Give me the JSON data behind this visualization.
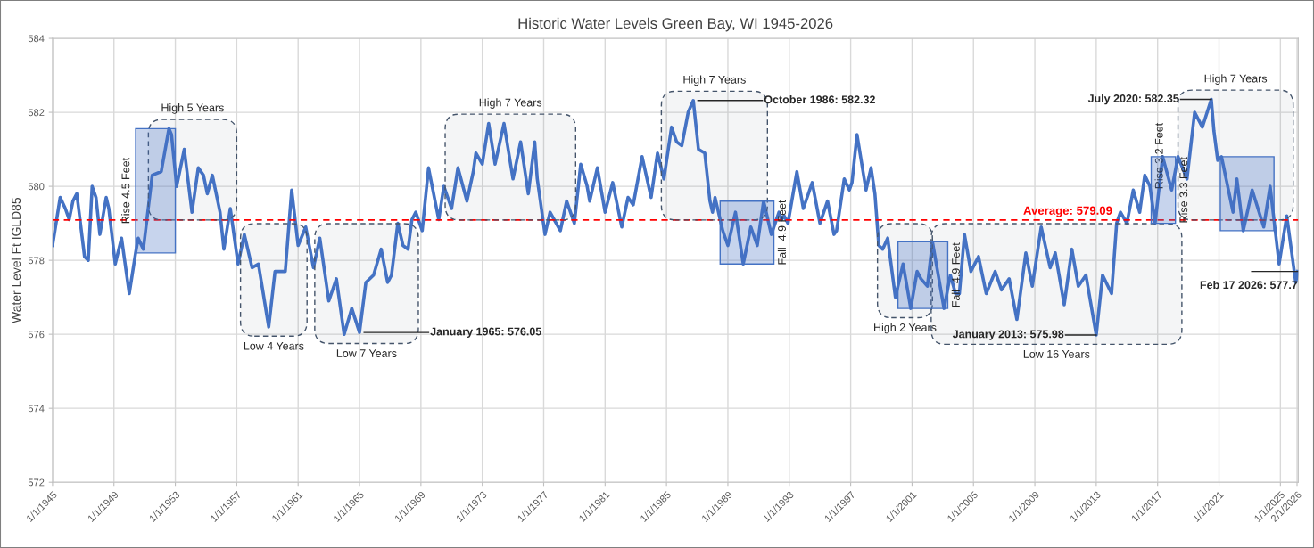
{
  "chart_data": {
    "type": "line",
    "title": "Historic Water Levels Green Bay, WI 1945-2026",
    "ylabel": "Water Level Ft IGLD85",
    "x": [
      "1945-01",
      "1945-07",
      "1945-11",
      "1946-02",
      "1946-05",
      "1946-08",
      "1947-02",
      "1947-05",
      "1947-08",
      "1947-11",
      "1948-02",
      "1948-07",
      "1948-09",
      "1949-02",
      "1949-07",
      "1950-01",
      "1950-06",
      "1950-08",
      "1950-12",
      "1951-07",
      "1952-02",
      "1952-08",
      "1952-10",
      "1953-02",
      "1953-08",
      "1954-02",
      "1954-07",
      "1954-11",
      "1955-02",
      "1955-06",
      "1955-12",
      "1956-03",
      "1956-08",
      "1957-02",
      "1957-07",
      "1958-01",
      "1958-06",
      "1959-02",
      "1959-07",
      "1960-03",
      "1960-08",
      "1961-01",
      "1961-07",
      "1962-01",
      "1962-06",
      "1963-01",
      "1963-07",
      "1964-01",
      "1964-07",
      "1965-01",
      "1965-06",
      "1965-12",
      "1966-06",
      "1966-11",
      "1967-02",
      "1967-07",
      "1967-11",
      "1968-03",
      "1968-06",
      "1968-09",
      "1969-02",
      "1969-07",
      "1970-03",
      "1970-07",
      "1971-01",
      "1971-06",
      "1972-01",
      "1972-06",
      "1972-08",
      "1973-01",
      "1973-06",
      "1973-11",
      "1974-06",
      "1975-01",
      "1975-07",
      "1976-01",
      "1976-06",
      "1976-08",
      "1977-02",
      "1977-06",
      "1978-02",
      "1978-07",
      "1979-01",
      "1979-06",
      "1979-11",
      "1980-01",
      "1980-07",
      "1981-01",
      "1981-07",
      "1982-02",
      "1982-07",
      "1982-11",
      "1983-06",
      "1984-01",
      "1984-06",
      "1984-11",
      "1985-05",
      "1985-09",
      "1986-01",
      "1986-06",
      "1986-10",
      "1987-02",
      "1987-07",
      "1987-11",
      "1988-01",
      "1988-03",
      "1988-09",
      "1989-01",
      "1989-07",
      "1990-01",
      "1990-07",
      "1990-12",
      "1991-05",
      "1991-11",
      "1992-05",
      "1992-07",
      "1992-09",
      "1992-12",
      "1993-07",
      "1993-12",
      "1994-07",
      "1995-01",
      "1995-07",
      "1995-12",
      "1996-02",
      "1996-08",
      "1996-12",
      "1997-02",
      "1997-06",
      "1998-01",
      "1998-05",
      "1998-08",
      "1998-11",
      "1999-02",
      "1999-06",
      "1999-12",
      "2000-06",
      "2000-12",
      "2001-05",
      "2001-08",
      "2002-01",
      "2002-05",
      "2002-08",
      "2003-02",
      "2003-07",
      "2003-11",
      "2004-02",
      "2004-06",
      "2004-11",
      "2005-05",
      "2005-11",
      "2006-06",
      "2006-11",
      "2007-05",
      "2007-11",
      "2008-06",
      "2008-11",
      "2009-06",
      "2010-01",
      "2010-05",
      "2010-12",
      "2011-06",
      "2011-11",
      "2012-05",
      "2013-01",
      "2013-06",
      "2014-01",
      "2014-05",
      "2014-08",
      "2015-01",
      "2015-06",
      "2015-11",
      "2016-03",
      "2016-07",
      "2016-11",
      "2017-05",
      "2017-12",
      "2018-05",
      "2018-12",
      "2019-06",
      "2019-12",
      "2020-07",
      "2020-09",
      "2020-12",
      "2021-03",
      "2021-12",
      "2022-03",
      "2022-08",
      "2023-03",
      "2023-12",
      "2024-05",
      "2024-12",
      "2025-06",
      "2026-01",
      "2026-02-17"
    ],
    "series": [
      {
        "color": "#4472c4",
        "values": [
          578.4,
          579.7,
          579.4,
          579.1,
          579.6,
          579.8,
          578.1,
          578.0,
          580.0,
          579.7,
          578.7,
          579.7,
          579.4,
          577.9,
          578.6,
          577.1,
          578.2,
          578.6,
          578.3,
          580.3,
          580.4,
          581.56,
          581.4,
          580.0,
          581.0,
          579.3,
          580.5,
          580.3,
          579.8,
          580.3,
          579.3,
          578.3,
          579.4,
          577.9,
          578.7,
          577.8,
          577.9,
          576.2,
          577.7,
          577.7,
          579.9,
          578.4,
          578.9,
          577.8,
          578.6,
          576.9,
          577.5,
          576.0,
          576.7,
          576.05,
          577.4,
          577.6,
          578.3,
          577.4,
          577.6,
          579.0,
          578.4,
          578.3,
          579.1,
          579.3,
          578.8,
          580.5,
          579.1,
          580.0,
          579.4,
          580.5,
          579.6,
          580.4,
          580.9,
          580.6,
          581.7,
          580.6,
          581.7,
          580.2,
          581.2,
          579.8,
          581.2,
          580.2,
          578.7,
          579.3,
          578.8,
          579.6,
          579.0,
          580.6,
          580.0,
          579.6,
          580.5,
          579.3,
          580.1,
          578.9,
          579.7,
          579.5,
          580.8,
          579.7,
          580.9,
          580.2,
          581.6,
          581.2,
          581.1,
          582.0,
          582.32,
          581.0,
          580.9,
          579.6,
          579.3,
          579.7,
          578.8,
          578.4,
          579.3,
          577.9,
          578.9,
          578.4,
          579.6,
          578.7,
          579.3,
          579.1,
          579.2,
          579.0,
          580.4,
          579.4,
          580.1,
          579.0,
          579.6,
          578.7,
          578.8,
          580.2,
          579.9,
          580.1,
          581.4,
          579.9,
          580.5,
          579.8,
          578.4,
          578.3,
          578.6,
          577.0,
          577.9,
          576.7,
          577.7,
          577.5,
          577.3,
          578.5,
          577.9,
          576.7,
          577.6,
          577.1,
          577.1,
          578.7,
          577.7,
          578.1,
          577.1,
          577.7,
          577.2,
          577.5,
          576.4,
          578.2,
          577.3,
          578.9,
          577.8,
          578.2,
          576.8,
          578.3,
          577.3,
          577.6,
          575.98,
          577.6,
          577.1,
          579.0,
          579.3,
          579.0,
          579.9,
          579.3,
          580.3,
          580.0,
          579.0,
          580.8,
          579.9,
          580.8,
          580.2,
          582.0,
          581.6,
          582.35,
          581.5,
          580.7,
          580.8,
          579.3,
          580.2,
          578.8,
          579.9,
          578.9,
          580.0,
          577.9,
          579.2,
          577.4,
          577.7
        ]
      }
    ],
    "xlim": [
      "1945-01-01",
      "2026-03-01"
    ],
    "xticks": [
      {
        "value": "1945-01-01",
        "label": "1/1/1945"
      },
      {
        "value": "1949-01-01",
        "label": "1/1/1949"
      },
      {
        "value": "1953-01-01",
        "label": "1/1/1953"
      },
      {
        "value": "1957-01-01",
        "label": "1/1/1957"
      },
      {
        "value": "1961-01-01",
        "label": "1/1/1961"
      },
      {
        "value": "1965-01-01",
        "label": "1/1/1965"
      },
      {
        "value": "1969-01-01",
        "label": "1/1/1969"
      },
      {
        "value": "1973-01-01",
        "label": "1/1/1973"
      },
      {
        "value": "1977-01-01",
        "label": "1/1/1977"
      },
      {
        "value": "1981-01-01",
        "label": "1/1/1981"
      },
      {
        "value": "1985-01-01",
        "label": "1/1/1985"
      },
      {
        "value": "1989-01-01",
        "label": "1/1/1989"
      },
      {
        "value": "1993-01-01",
        "label": "1/1/1993"
      },
      {
        "value": "1997-01-01",
        "label": "1/1/1997"
      },
      {
        "value": "2001-01-01",
        "label": "1/1/2001"
      },
      {
        "value": "2005-01-01",
        "label": "1/1/2005"
      },
      {
        "value": "2009-01-01",
        "label": "1/1/2009"
      },
      {
        "value": "2013-01-01",
        "label": "1/1/2013"
      },
      {
        "value": "2017-01-01",
        "label": "1/1/2017"
      },
      {
        "value": "2021-01-01",
        "label": "1/1/2021"
      },
      {
        "value": "2025-01-01",
        "label": "1/1/2025"
      },
      {
        "value": "2026-02-01",
        "label": "2/1/2026"
      }
    ],
    "ylim": [
      572,
      584
    ],
    "yticks": [
      572,
      574,
      576,
      578,
      580,
      582,
      584
    ],
    "grid": true,
    "legend": false,
    "marker": "none",
    "line_style": "solid",
    "ref_lines": [
      {
        "axis": "y",
        "value": 579.09,
        "label": "Average: 579.09",
        "color": "#ff0000",
        "line_style": "dashed"
      }
    ],
    "bands": [
      {
        "axis": "x",
        "from": "1950-06",
        "to": "1953-01",
        "label": "Rise 4.5 Feet",
        "color": "#4472c4"
      },
      {
        "axis": "x",
        "from": "1988-07",
        "to": "1992-01",
        "label": "Fall  4.9 Feet",
        "color": "#4472c4"
      },
      {
        "axis": "x",
        "from": "2000-02",
        "to": "2003-05",
        "label": "Fall  4.9 Feet",
        "color": "#4472c4"
      },
      {
        "axis": "x",
        "from": "2016-08",
        "to": "2018-03",
        "label": "Rise 3.3 Feet",
        "color": "#4472c4"
      },
      {
        "axis": "x",
        "from": "2021-02",
        "to": "2024-08",
        "color": "#4472c4"
      },
      {
        "axis": "x",
        "from": "1951-04",
        "to": "1957-01",
        "label": "High 5 Years"
      },
      {
        "axis": "x",
        "from": "1957-04",
        "to": "1961-08",
        "label": "Low 4 Years"
      },
      {
        "axis": "x",
        "from": "1962-02",
        "to": "1968-11",
        "label": "Low 7 Years"
      },
      {
        "axis": "x",
        "from": "1970-08",
        "to": "1979-02",
        "label": "High 7 Years"
      },
      {
        "axis": "x",
        "from": "1984-09",
        "to": "1991-08",
        "label": "High 7 Years"
      },
      {
        "axis": "x",
        "from": "1998-10",
        "to": "2002-05",
        "label": "High 2 Years"
      },
      {
        "axis": "x",
        "from": "2002-04",
        "to": "2018-08",
        "label": "Low 16 Years"
      },
      {
        "axis": "x",
        "from": "2018-05",
        "to": "2025-11",
        "label": "High 7 Years"
      }
    ],
    "annotations": [
      {
        "text": "January 1965: 576.05",
        "x": "1965-01",
        "y": 576.05
      },
      {
        "text": "October 1986: 582.32",
        "x": "1986-10",
        "y": 582.32
      },
      {
        "text": "January 2013: 575.98",
        "x": "2013-01",
        "y": 575.98
      },
      {
        "text": "July 2020: 582.35",
        "x": "2020-07",
        "y": 582.35
      },
      {
        "text": "Feb 17 2026: 577.7",
        "x": "2026-02-17",
        "y": 577.7
      },
      "Rise 3.2 Feet"
    ]
  }
}
